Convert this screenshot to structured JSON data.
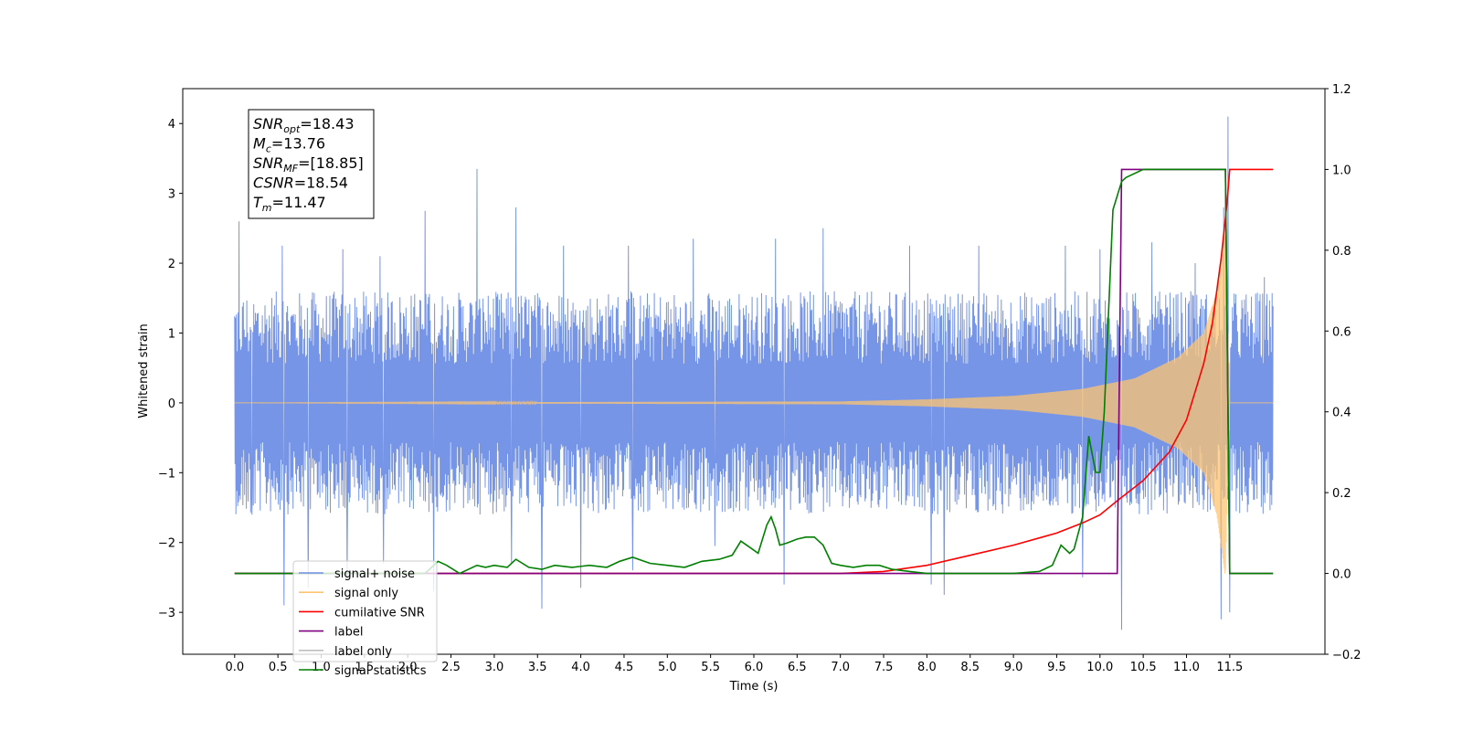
{
  "chart_data": {
    "type": "line",
    "xlabel": "Time (s)",
    "ylabel": "Whitened strain",
    "xlim": [
      -0.6,
      12.6
    ],
    "ylim": [
      -3.6,
      4.5
    ],
    "ylim_right": [
      -0.2,
      1.2
    ],
    "x_ticks": [
      "0.0",
      "0.5",
      "1.0",
      "1.5",
      "2.0",
      "2.5",
      "3.0",
      "3.5",
      "4.0",
      "4.5",
      "5.0",
      "5.5",
      "6.0",
      "6.5",
      "7.0",
      "7.5",
      "8.0",
      "8.5",
      "9.0",
      "9.5",
      "10.0",
      "10.5",
      "11.0",
      "11.5"
    ],
    "y_ticks_left": [
      "4",
      "3",
      "2",
      "1",
      "0",
      "−1",
      "−2",
      "−3"
    ],
    "y_ticks_right": [
      "1.2",
      "1.0",
      "0.8",
      "0.6",
      "0.4",
      "0.2",
      "0.0",
      "−0.2"
    ],
    "grid": false,
    "legend_position": "lower-left",
    "legend": [
      {
        "label": "signal+ noise",
        "color": "#6f8fe6"
      },
      {
        "label": "signal only",
        "color": "#ffc470"
      },
      {
        "label": "cumilative SNR",
        "color": "#ff0000"
      },
      {
        "label": "label",
        "color": "#800080"
      },
      {
        "label": "label only",
        "color": "#bfbfbf"
      },
      {
        "label": "signal statistics",
        "color": "#007f00"
      }
    ],
    "annotation": {
      "lines": [
        {
          "base": "SNR",
          "sub": "opt",
          "value": "=18.43"
        },
        {
          "base": "M",
          "sub": "c",
          "value": "=13.76"
        },
        {
          "base": "SNR",
          "sub": "MF",
          "value": "=[18.85]"
        },
        {
          "base": "CSNR",
          "sub": "",
          "value": "=18.54"
        },
        {
          "base": "T",
          "sub": "m",
          "value": "=11.47"
        }
      ]
    },
    "series": [
      {
        "name": "signal+ noise",
        "axis": "left",
        "color": "#6f8fe6",
        "noise_band": {
          "x_start": 0.0,
          "x_end": 12.0,
          "typical_max": 1.6,
          "typical_min": -1.6
        },
        "peaks": [
          [
            0.05,
            2.6
          ],
          [
            0.55,
            2.25
          ],
          [
            0.2,
            -1.6
          ],
          [
            0.57,
            -2.9
          ],
          [
            0.85,
            -2.65
          ],
          [
            1.25,
            2.2
          ],
          [
            1.3,
            -2.5
          ],
          [
            1.68,
            2.1
          ],
          [
            1.72,
            -2.3
          ],
          [
            2.2,
            2.75
          ],
          [
            2.3,
            -2.7
          ],
          [
            2.8,
            3.35
          ],
          [
            3.2,
            -2.3
          ],
          [
            3.25,
            2.8
          ],
          [
            3.55,
            -2.95
          ],
          [
            3.8,
            2.25
          ],
          [
            4.0,
            -2.65
          ],
          [
            4.55,
            2.25
          ],
          [
            4.6,
            -2.4
          ],
          [
            5.3,
            2.35
          ],
          [
            5.55,
            -2.05
          ],
          [
            6.25,
            2.35
          ],
          [
            6.35,
            -2.6
          ],
          [
            6.8,
            2.5
          ],
          [
            7.8,
            2.25
          ],
          [
            8.05,
            -2.6
          ],
          [
            8.2,
            -2.75
          ],
          [
            8.6,
            2.25
          ],
          [
            9.6,
            2.25
          ],
          [
            9.8,
            -2.5
          ],
          [
            10.0,
            2.2
          ],
          [
            10.25,
            -3.25
          ],
          [
            10.6,
            2.3
          ],
          [
            11.1,
            2.0
          ],
          [
            11.4,
            -3.1
          ],
          [
            11.43,
            2.8
          ],
          [
            11.48,
            4.1
          ],
          [
            11.5,
            -3.0
          ],
          [
            11.9,
            1.8
          ]
        ]
      },
      {
        "name": "signal only",
        "axis": "left",
        "color": "#ffc470",
        "envelope": [
          [
            0.0,
            0.0
          ],
          [
            7.0,
            0.02
          ],
          [
            8.0,
            0.05
          ],
          [
            9.0,
            0.1
          ],
          [
            9.8,
            0.2
          ],
          [
            10.4,
            0.35
          ],
          [
            10.9,
            0.65
          ],
          [
            11.2,
            1.0
          ],
          [
            11.35,
            1.6
          ],
          [
            11.45,
            2.5
          ],
          [
            11.5,
            0.0
          ],
          [
            12.0,
            0.0
          ]
        ]
      },
      {
        "name": "cumilative SNR",
        "axis": "right",
        "color": "#ff0000",
        "x": [
          0.0,
          7.0,
          7.5,
          8.0,
          8.5,
          9.0,
          9.5,
          9.8,
          10.0,
          10.2,
          10.5,
          10.8,
          11.0,
          11.2,
          11.3,
          11.4,
          11.47,
          11.5,
          11.6,
          12.0
        ],
        "y": [
          0.0,
          0.0,
          0.005,
          0.02,
          0.045,
          0.07,
          0.1,
          0.125,
          0.145,
          0.18,
          0.23,
          0.3,
          0.38,
          0.52,
          0.62,
          0.78,
          0.92,
          1.0,
          1.0,
          1.0
        ]
      },
      {
        "name": "label",
        "axis": "right",
        "color": "#800080",
        "x": [
          0.0,
          10.2,
          10.25,
          11.45,
          11.5,
          12.0
        ],
        "y": [
          0.0,
          0.0,
          1.0,
          1.0,
          0.0,
          0.0
        ]
      },
      {
        "name": "signal statistics",
        "axis": "right",
        "color": "#007f00",
        "x": [
          0.0,
          2.2,
          2.35,
          2.45,
          2.6,
          2.8,
          2.9,
          3.0,
          3.15,
          3.25,
          3.4,
          3.55,
          3.7,
          3.9,
          4.1,
          4.3,
          4.45,
          4.6,
          4.8,
          5.0,
          5.2,
          5.4,
          5.6,
          5.75,
          5.85,
          5.95,
          6.05,
          6.15,
          6.2,
          6.25,
          6.3,
          6.38,
          6.5,
          6.6,
          6.7,
          6.8,
          6.9,
          7.0,
          7.15,
          7.3,
          7.45,
          7.6,
          7.8,
          8.0,
          9.0,
          9.3,
          9.45,
          9.55,
          9.65,
          9.7,
          9.8,
          9.87,
          9.95,
          10.0,
          10.05,
          10.15,
          10.25,
          10.3,
          10.5,
          11.0,
          11.45,
          11.5,
          12.0
        ],
        "y": [
          0.0,
          0.0,
          0.03,
          0.02,
          0.0,
          0.02,
          0.015,
          0.02,
          0.015,
          0.035,
          0.015,
          0.01,
          0.02,
          0.015,
          0.02,
          0.015,
          0.03,
          0.04,
          0.025,
          0.02,
          0.015,
          0.03,
          0.035,
          0.045,
          0.08,
          0.065,
          0.05,
          0.12,
          0.14,
          0.11,
          0.07,
          0.075,
          0.085,
          0.09,
          0.09,
          0.07,
          0.025,
          0.02,
          0.015,
          0.02,
          0.02,
          0.01,
          0.005,
          0.0,
          0.0,
          0.005,
          0.02,
          0.07,
          0.05,
          0.06,
          0.14,
          0.34,
          0.25,
          0.25,
          0.4,
          0.9,
          0.97,
          0.98,
          1.0,
          1.0,
          1.0,
          0.0,
          0.0
        ]
      }
    ]
  }
}
